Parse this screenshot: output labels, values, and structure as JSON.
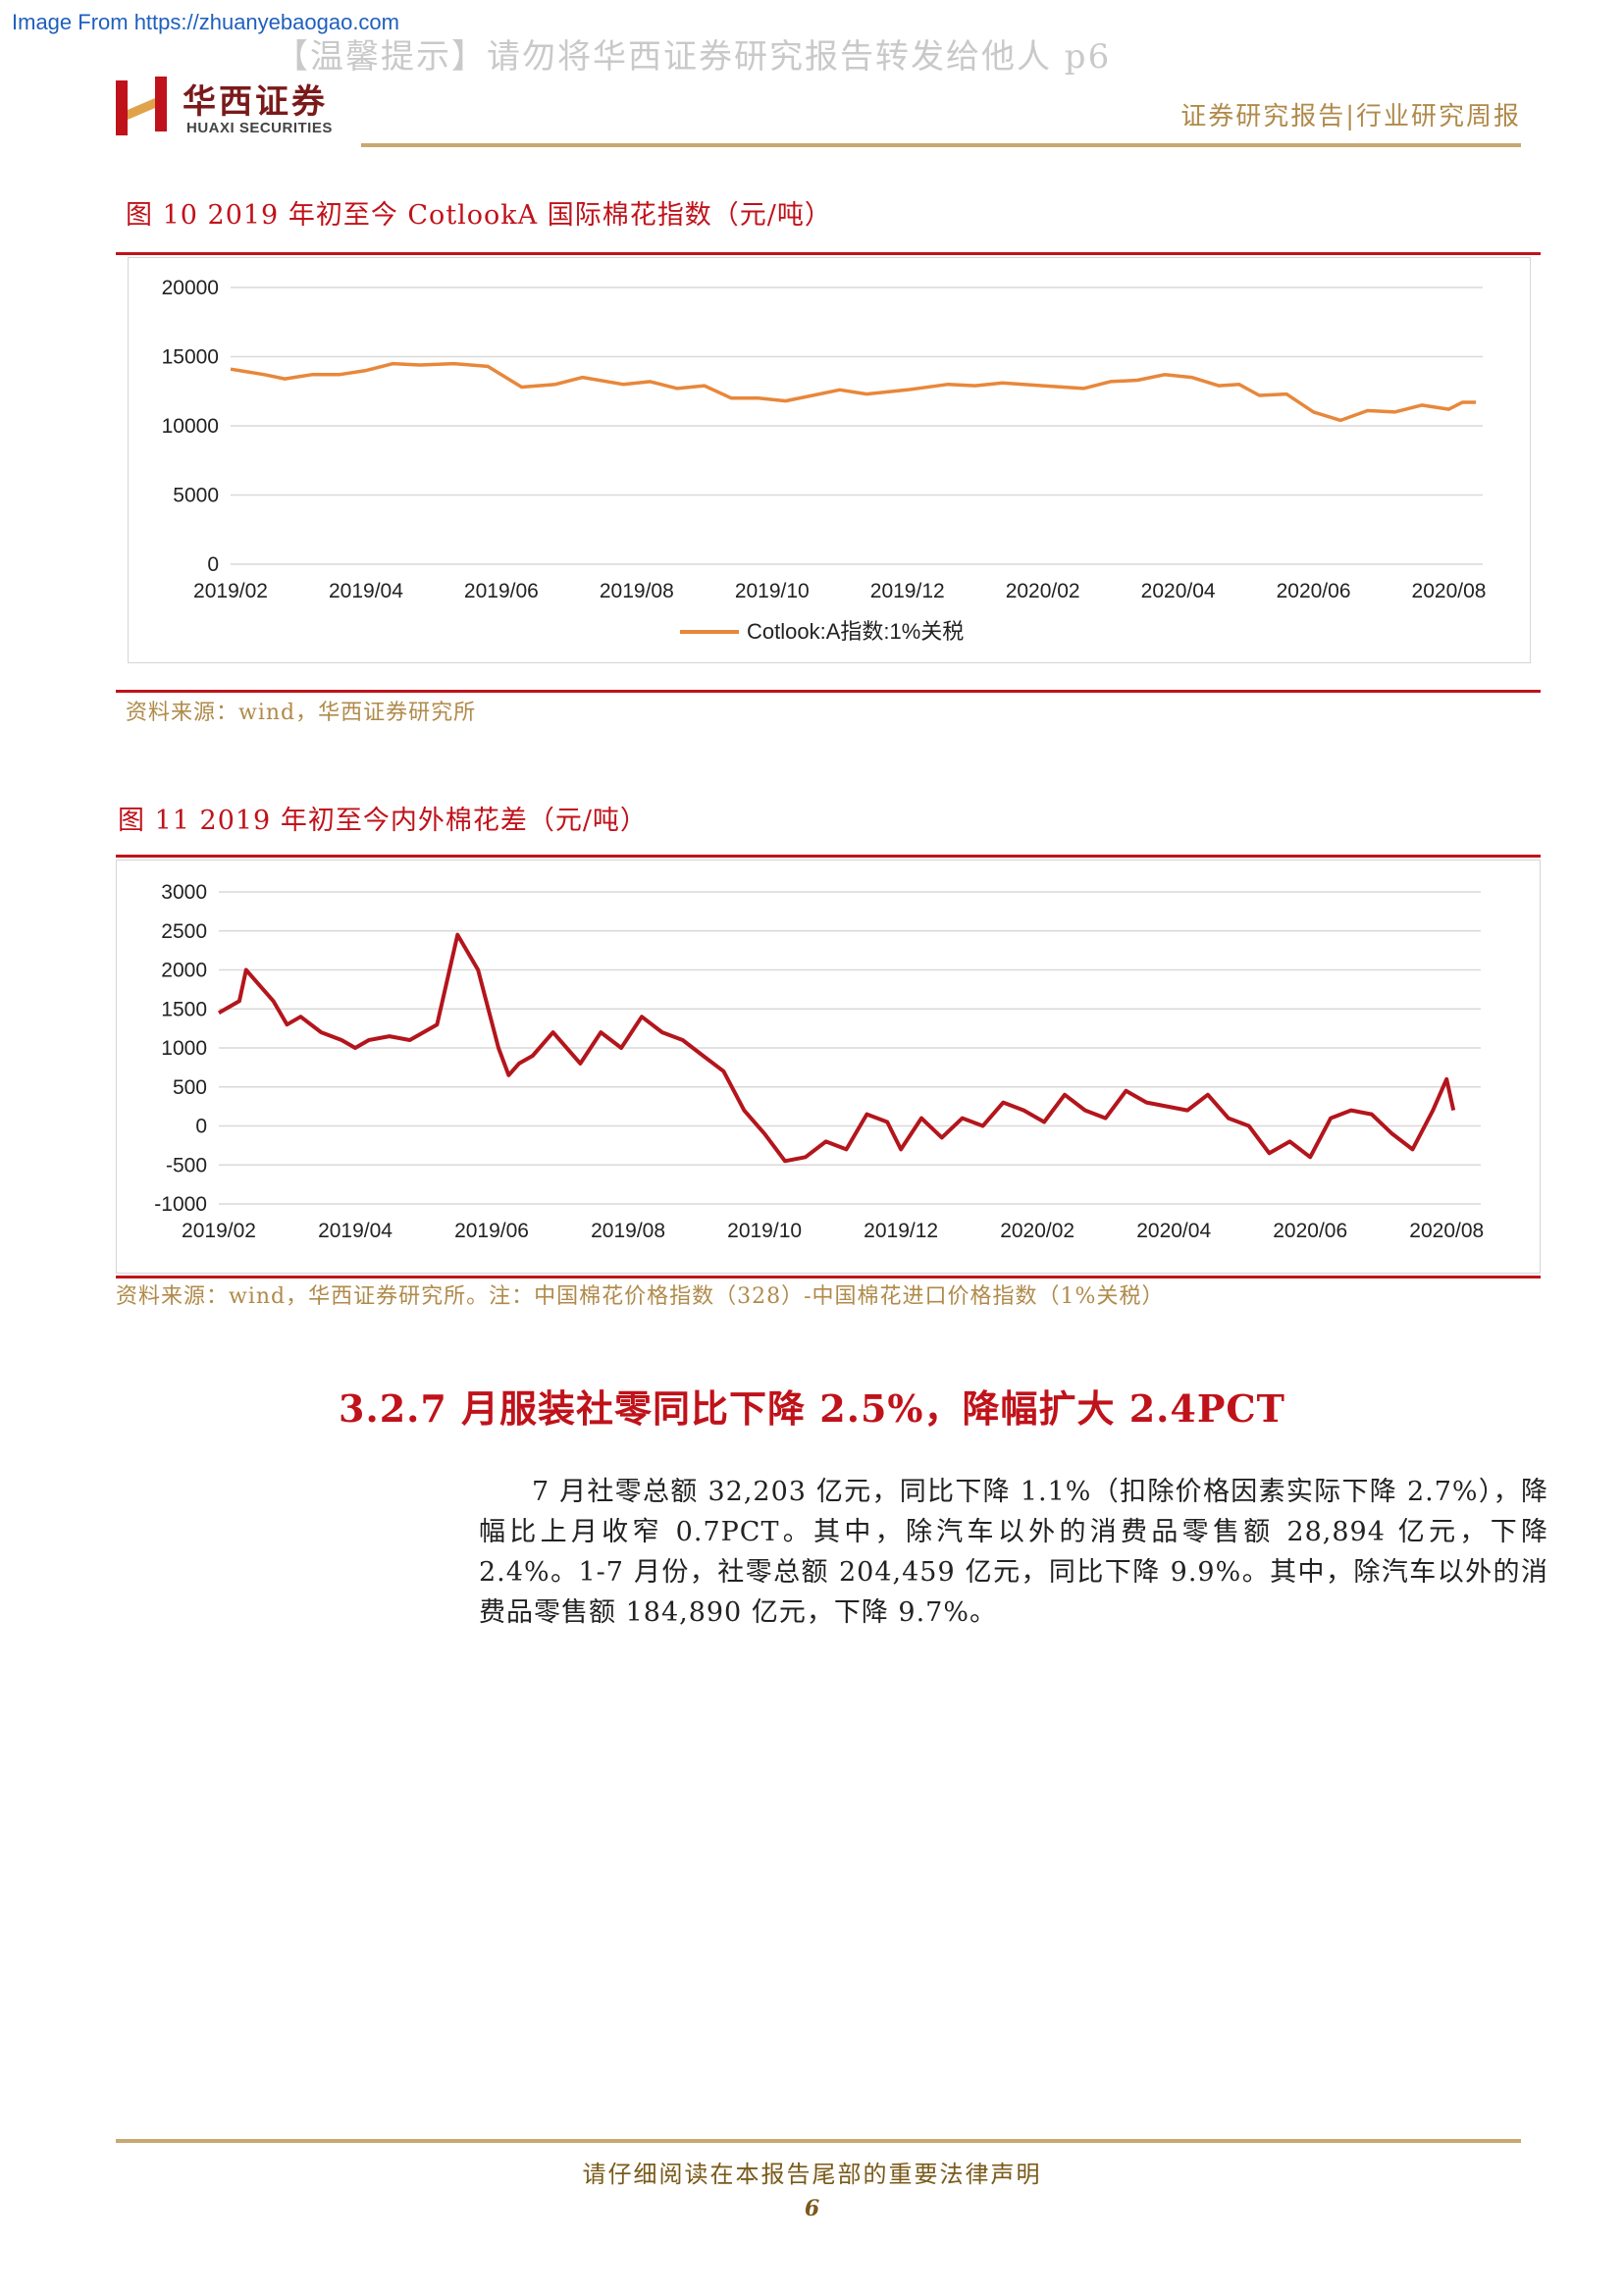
{
  "watermark": {
    "url": "Image From https://zhuanyebaogao.com",
    "notice": "【温馨提示】请勿将华西证券研究报告转发给他人  p6"
  },
  "header": {
    "logo_cn": "华西证券",
    "logo_en": "HUAXI SECURITIES",
    "right": "证券研究报告|行业研究周报",
    "brand_color": "#c0121a"
  },
  "figure10": {
    "title": "图 10 2019 年初至今 CotlookA 国际棉花指数（元/吨）",
    "source": "资料来源：wind，华西证券研究所",
    "legend": "Cotlook:A指数:1%关税"
  },
  "figure11": {
    "title": "图 11 2019 年初至今内外棉花差（元/吨）",
    "source": "资料来源：wind，华西证券研究所。注：中国棉花价格指数（328）-中国棉花进口价格指数（1%关税）"
  },
  "section": {
    "title": "3.2.7 月服装社零同比下降 2.5%，降幅扩大 2.4PCT",
    "paragraph": "7 月社零总额 32,203 亿元，同比下降 1.1%（扣除价格因素实际下降 2.7%），降幅比上月收窄 0.7PCT。其中，除汽车以外的消费品零售额 28,894 亿元，下降 2.4%。1-7 月份，社零总额 204,459 亿元，同比下降 9.9%。其中，除汽车以外的消费品零售额 184,890 亿元，下降 9.7%。"
  },
  "footer": {
    "text": "请仔细阅读在本报告尾部的重要法律声明",
    "page": "6"
  },
  "chart_data": [
    {
      "type": "line",
      "title": "",
      "xlabel": "",
      "ylabel": "",
      "ylim": [
        0,
        20000
      ],
      "yticks": [
        0,
        5000,
        10000,
        15000,
        20000
      ],
      "xlim": [
        0,
        18.5
      ],
      "xticks": [
        "2019/02",
        "2019/04",
        "2019/06",
        "2019/08",
        "2019/10",
        "2019/12",
        "2020/02",
        "2020/04",
        "2020/06",
        "2020/08"
      ],
      "grid": true,
      "legend": "bottom-center",
      "series": [
        {
          "name": "Cotlook:A指数:1%关税",
          "color": "#e8873a",
          "x": [
            0,
            0.5,
            0.8,
            1.2,
            1.6,
            2.0,
            2.4,
            2.8,
            3.3,
            3.8,
            4.3,
            4.8,
            5.2,
            5.8,
            6.2,
            6.6,
            7.0,
            7.4,
            7.8,
            8.2,
            8.6,
            9.0,
            9.4,
            10.0,
            10.6,
            11.0,
            11.4,
            12.0,
            12.6,
            13.0,
            13.4,
            13.8,
            14.2,
            14.6,
            14.9,
            15.2,
            15.6,
            16.0,
            16.4,
            16.8,
            17.2,
            17.6,
            18.0,
            18.2,
            18.4
          ],
          "y": [
            14100,
            13700,
            13400,
            13700,
            13700,
            14000,
            14500,
            14400,
            14500,
            14300,
            12800,
            13000,
            13500,
            13000,
            13200,
            12700,
            12900,
            12000,
            12000,
            11800,
            12200,
            12600,
            12300,
            12600,
            13000,
            12900,
            13100,
            12900,
            12700,
            13200,
            13300,
            13700,
            13500,
            12900,
            13000,
            12200,
            12300,
            11000,
            10400,
            11100,
            11000,
            11500,
            11200,
            11700,
            11700
          ]
        }
      ]
    },
    {
      "type": "line",
      "title": "",
      "xlabel": "",
      "ylabel": "",
      "ylim": [
        -1000,
        3000
      ],
      "yticks": [
        -1000,
        -500,
        0,
        500,
        1000,
        1500,
        2000,
        2500,
        3000
      ],
      "xlim": [
        0,
        18.5
      ],
      "xticks": [
        "2019/02",
        "2019/04",
        "2019/06",
        "2019/08",
        "2019/10",
        "2019/12",
        "2020/02",
        "2020/04",
        "2020/06",
        "2020/08"
      ],
      "grid": true,
      "legend": "none",
      "series": [
        {
          "name": "",
          "color": "#b4151c",
          "x": [
            0,
            0.3,
            0.4,
            0.6,
            0.8,
            1.0,
            1.2,
            1.5,
            1.8,
            2.0,
            2.2,
            2.5,
            2.8,
            3.0,
            3.2,
            3.5,
            3.8,
            3.95,
            4.1,
            4.25,
            4.4,
            4.6,
            4.9,
            5.1,
            5.3,
            5.6,
            5.9,
            6.2,
            6.5,
            6.8,
            7.1,
            7.4,
            7.7,
            8.0,
            8.3,
            8.6,
            8.9,
            9.2,
            9.5,
            9.8,
            10.0,
            10.3,
            10.6,
            10.9,
            11.2,
            11.5,
            11.8,
            12.1,
            12.4,
            12.7,
            13.0,
            13.3,
            13.6,
            13.9,
            14.2,
            14.5,
            14.8,
            15.1,
            15.4,
            15.7,
            16.0,
            16.3,
            16.6,
            16.9,
            17.2,
            17.5,
            17.8,
            18.0,
            18.1
          ],
          "y": [
            1450,
            1600,
            2000,
            1800,
            1600,
            1300,
            1400,
            1200,
            1100,
            1000,
            1100,
            1150,
            1100,
            1200,
            1300,
            2450,
            2000,
            1500,
            1000,
            650,
            800,
            900,
            1200,
            1000,
            800,
            1200,
            1000,
            1400,
            1200,
            1100,
            900,
            700,
            200,
            -100,
            -450,
            -400,
            -200,
            -300,
            150,
            50,
            -300,
            100,
            -150,
            100,
            0,
            300,
            200,
            50,
            400,
            200,
            100,
            450,
            300,
            250,
            200,
            400,
            100,
            0,
            -350,
            -200,
            -400,
            100,
            200,
            150,
            -100,
            -300,
            200,
            600,
            200
          ]
        }
      ]
    }
  ]
}
